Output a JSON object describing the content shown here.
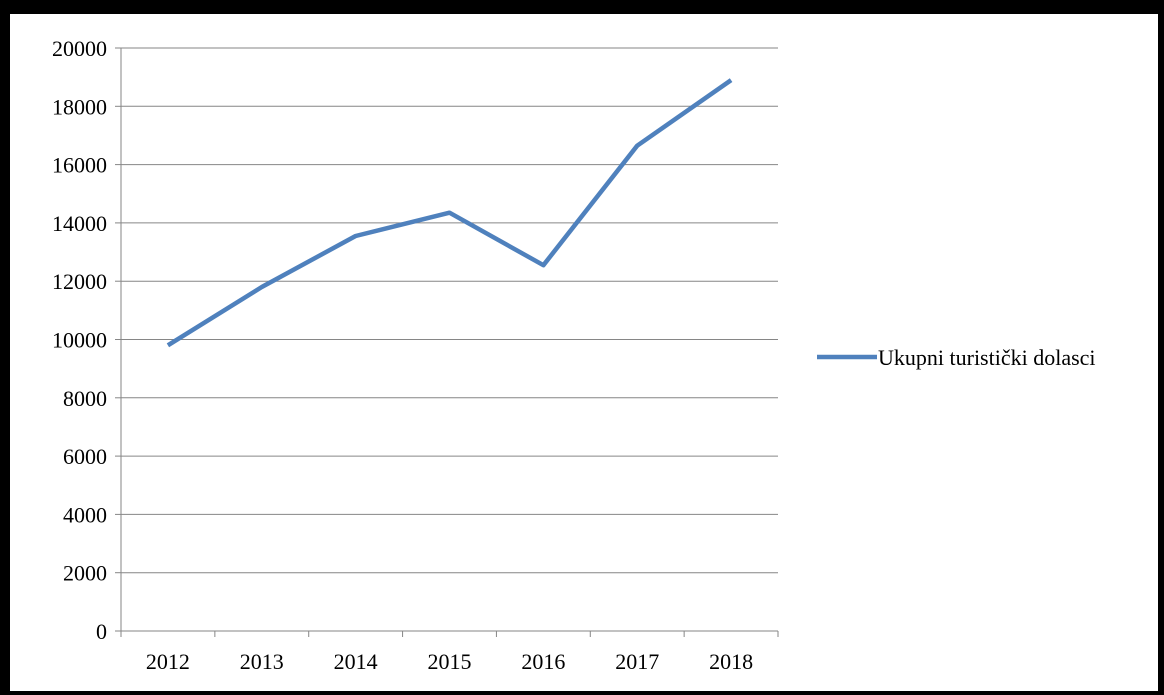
{
  "chart_data": {
    "type": "line",
    "title": "",
    "xlabel": "",
    "ylabel": "",
    "categories": [
      "2012",
      "2013",
      "2014",
      "2015",
      "2016",
      "2017",
      "2018"
    ],
    "series": [
      {
        "name": "Ukupni turistički dolasci",
        "color": "#4f81bd",
        "values": [
          9800,
          11800,
          13550,
          14350,
          12550,
          16650,
          18900
        ]
      }
    ],
    "ylim": [
      0,
      20000
    ],
    "yticks": [
      0,
      2000,
      4000,
      6000,
      8000,
      10000,
      12000,
      14000,
      16000,
      18000,
      20000
    ],
    "grid": "horizontal",
    "legend_position": "right"
  }
}
